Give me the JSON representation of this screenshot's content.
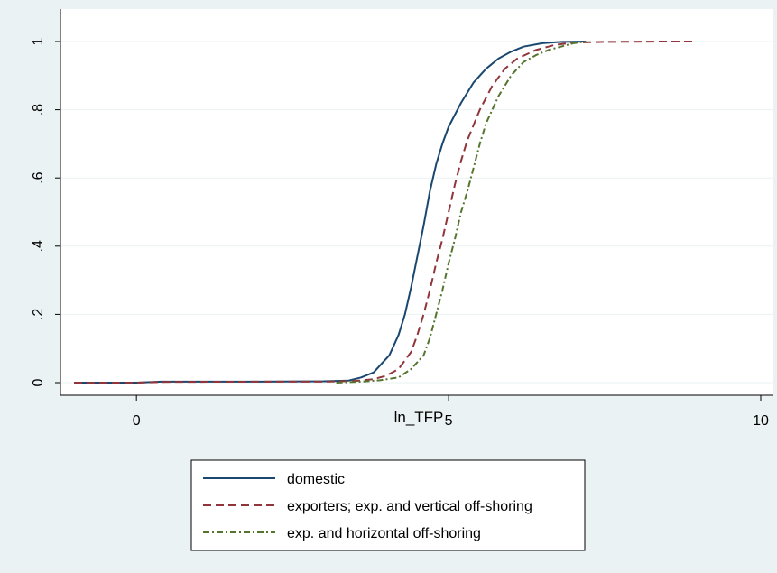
{
  "chart_data": {
    "type": "line",
    "title": "",
    "xlabel": "ln_TFP",
    "ylabel": "",
    "xlim": [
      -1,
      10
    ],
    "ylim": [
      0,
      1
    ],
    "x_ticks": [
      0,
      5,
      10
    ],
    "x_tick_labels": [
      "0",
      "5",
      "10"
    ],
    "y_ticks": [
      0,
      0.2,
      0.4,
      0.6,
      0.8,
      1
    ],
    "y_tick_labels": [
      "0",
      ".2",
      ".4",
      ".6",
      ".8",
      "1"
    ],
    "grid": "horizontal",
    "legend_position": "bottom",
    "series": [
      {
        "name": "domestic",
        "color": "#1a476f",
        "dash": "solid",
        "points": [
          [
            -1,
            0
          ],
          [
            0,
            0
          ],
          [
            0.4,
            0.003
          ],
          [
            2.0,
            0.003
          ],
          [
            3.0,
            0.004
          ],
          [
            3.4,
            0.006
          ],
          [
            3.6,
            0.015
          ],
          [
            3.8,
            0.03
          ],
          [
            3.9,
            0.05
          ],
          [
            4.05,
            0.08
          ],
          [
            4.2,
            0.14
          ],
          [
            4.3,
            0.2
          ],
          [
            4.4,
            0.28
          ],
          [
            4.5,
            0.37
          ],
          [
            4.6,
            0.46
          ],
          [
            4.7,
            0.56
          ],
          [
            4.8,
            0.64
          ],
          [
            4.9,
            0.7
          ],
          [
            5.0,
            0.75
          ],
          [
            5.2,
            0.82
          ],
          [
            5.4,
            0.88
          ],
          [
            5.6,
            0.92
          ],
          [
            5.8,
            0.95
          ],
          [
            6.0,
            0.97
          ],
          [
            6.2,
            0.985
          ],
          [
            6.5,
            0.995
          ],
          [
            6.8,
            0.999
          ],
          [
            7.2,
            1.0
          ]
        ]
      },
      {
        "name": "exporters; exp. and vertical off-shoring",
        "color": "#90353b",
        "dash": "dashed",
        "points": [
          [
            -1,
            0
          ],
          [
            0,
            0
          ],
          [
            0.4,
            0.002
          ],
          [
            2.0,
            0.003
          ],
          [
            3.0,
            0.003
          ],
          [
            3.5,
            0.005
          ],
          [
            3.8,
            0.01
          ],
          [
            4.0,
            0.02
          ],
          [
            4.2,
            0.04
          ],
          [
            4.4,
            0.09
          ],
          [
            4.5,
            0.14
          ],
          [
            4.6,
            0.2
          ],
          [
            4.7,
            0.27
          ],
          [
            4.8,
            0.35
          ],
          [
            4.9,
            0.42
          ],
          [
            5.0,
            0.5
          ],
          [
            5.1,
            0.58
          ],
          [
            5.2,
            0.65
          ],
          [
            5.3,
            0.71
          ],
          [
            5.5,
            0.8
          ],
          [
            5.7,
            0.87
          ],
          [
            5.9,
            0.92
          ],
          [
            6.1,
            0.95
          ],
          [
            6.4,
            0.975
          ],
          [
            6.7,
            0.99
          ],
          [
            7.0,
            0.997
          ],
          [
            7.5,
            0.999
          ],
          [
            8.5,
            1.0
          ],
          [
            8.9,
            1.0
          ]
        ]
      },
      {
        "name": "exp. and horizontal off-shoring",
        "color": "#55752f",
        "dash": "dashdot",
        "points": [
          [
            3.2,
            0.0
          ],
          [
            3.6,
            0.003
          ],
          [
            3.9,
            0.007
          ],
          [
            4.2,
            0.015
          ],
          [
            4.4,
            0.04
          ],
          [
            4.6,
            0.08
          ],
          [
            4.7,
            0.13
          ],
          [
            4.8,
            0.2
          ],
          [
            4.9,
            0.27
          ],
          [
            5.0,
            0.35
          ],
          [
            5.1,
            0.42
          ],
          [
            5.2,
            0.5
          ],
          [
            5.3,
            0.56
          ],
          [
            5.4,
            0.63
          ],
          [
            5.5,
            0.7
          ],
          [
            5.6,
            0.76
          ],
          [
            5.8,
            0.84
          ],
          [
            6.0,
            0.9
          ],
          [
            6.2,
            0.94
          ],
          [
            6.4,
            0.96
          ],
          [
            6.6,
            0.975
          ],
          [
            6.8,
            0.985
          ],
          [
            7.0,
            0.995
          ],
          [
            7.2,
            1.0
          ]
        ]
      }
    ]
  }
}
